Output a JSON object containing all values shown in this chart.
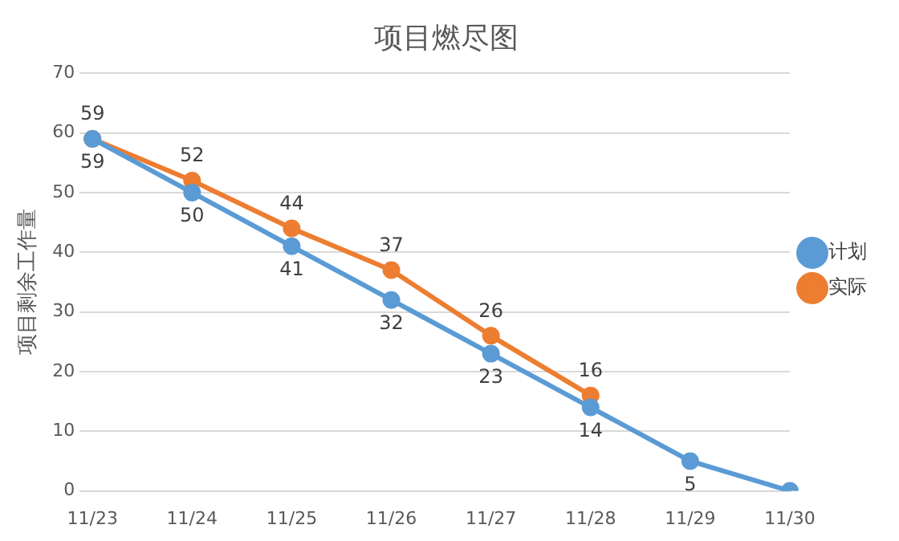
{
  "chart_data": {
    "type": "line",
    "title": "项目燃尽图",
    "ylabel": "项目剩余工作量",
    "categories": [
      "11/23",
      "11/24",
      "11/25",
      "11/26",
      "11/27",
      "11/28",
      "11/29",
      "11/30"
    ],
    "series": [
      {
        "name": "计划",
        "color": "#5b9bd5",
        "values": [
          59,
          50,
          41,
          32,
          23,
          14,
          5,
          0
        ],
        "value_labels": [
          "59",
          "50",
          "41",
          "32",
          "23",
          "14",
          "5",
          null
        ]
      },
      {
        "name": "实际",
        "color": "#ed7d31",
        "values": [
          59,
          52,
          44,
          37,
          26,
          16,
          null,
          null
        ],
        "value_labels": [
          "59",
          "52",
          "44",
          "37",
          "26",
          "16",
          null,
          null
        ]
      }
    ],
    "ylim": [
      0,
      70
    ],
    "yticks": [
      0,
      10,
      20,
      30,
      40,
      50,
      60,
      70
    ],
    "grid": "y",
    "legend": "right",
    "marker": "circle",
    "line_style": "solid"
  }
}
